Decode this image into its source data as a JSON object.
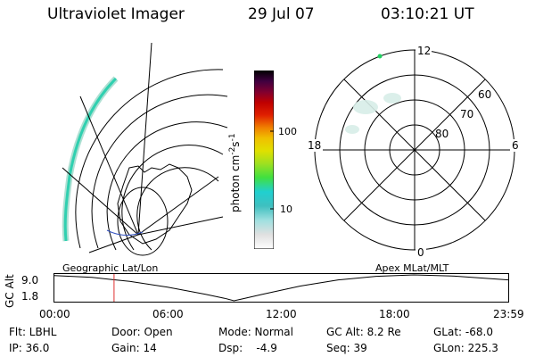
{
  "header": {
    "instrument": "Ultraviolet Imager",
    "date": "29 Jul 07",
    "time": "03:10:21 UT"
  },
  "colorbar": {
    "unit": "photon cm",
    "unit_exp1": "-2",
    "unit_mid": "s",
    "unit_exp2": "-1",
    "tick_100": "100",
    "tick_10": "10",
    "colors": [
      "#ffffff",
      "#e0e0e0",
      "#a0e0e0",
      "#40c0c0",
      "#20d0d0",
      "#40e040",
      "#a0e020",
      "#e0e000",
      "#f0c000",
      "#f08000",
      "#e02000",
      "#c00000",
      "#800030",
      "#400040",
      "#000000"
    ]
  },
  "polar": {
    "mlt_labels": {
      "top": "12",
      "left": "18",
      "right": "6",
      "bottom": "0"
    },
    "lat_labels": [
      "60",
      "70",
      "80"
    ]
  },
  "orbit": {
    "left_label": "Geographic Lat/Lon",
    "right_label": "Apex MLat/MLT",
    "axis_label": "GC Alt",
    "y_max": "9.0",
    "y_min": "1.8",
    "x_ticks": [
      "00:00",
      "06:00",
      "12:00",
      "18:00",
      "23:59"
    ],
    "curve_hours": [
      0,
      2,
      4,
      6,
      8,
      9,
      9.5,
      10,
      11,
      13,
      15,
      17,
      19,
      21,
      23.98
    ],
    "curve_alt": [
      8.8,
      8.3,
      7.2,
      5.6,
      3.6,
      2.5,
      1.8,
      2.4,
      3.6,
      5.9,
      7.6,
      8.6,
      9.0,
      8.7,
      7.6
    ],
    "marker_hour": 3.17
  },
  "info": {
    "filter": "Flt: LBHL",
    "ip": "IP: 36.0",
    "door": "Door: Open",
    "gain": "Gain: 14",
    "mode": "Mode: Normal",
    "dsp": "Dsp:    -4.9",
    "gc_alt": "GC Alt: 8.2 Re",
    "seq": "Seq: 39",
    "glat": "GLat: -68.0",
    "glon": "GLon: 225.3"
  }
}
